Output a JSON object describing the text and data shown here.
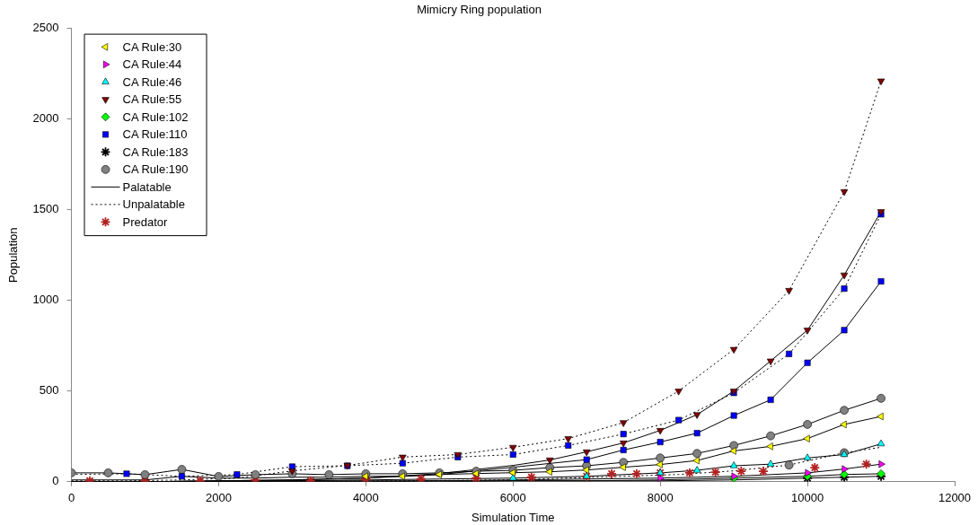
{
  "chart_data": {
    "type": "scatter",
    "title": "Mimicry Ring population",
    "xlabel": "Simulation Time",
    "ylabel": "Population",
    "xlim": [
      0,
      12000
    ],
    "ylim": [
      0,
      2500
    ],
    "xticks": [
      0,
      2000,
      4000,
      6000,
      8000,
      10000,
      12000
    ],
    "yticks": [
      0,
      500,
      1000,
      1500,
      2000,
      2500
    ],
    "grid": false,
    "legend": "top left",
    "series": [
      {
        "name": "CA Rule:30",
        "color": "#ffff00",
        "marker": "triangle-left",
        "x": [
          4000,
          4500,
          5000,
          5500,
          6000,
          6500,
          7000,
          7500,
          8000,
          8500,
          9000,
          9500,
          10000,
          10500,
          11000
        ],
        "values": [
          30,
          30,
          40,
          45,
          50,
          55,
          65,
          80,
          95,
          117,
          170,
          195,
          238,
          316,
          360
        ]
      },
      {
        "name": "CA Rule:44",
        "color": "#ff00ff",
        "marker": "triangle-right",
        "x": [
          8000,
          9000,
          10000,
          10500,
          11000
        ],
        "values": [
          20,
          30,
          49,
          70,
          97
        ]
      },
      {
        "name": "CA Rule:46",
        "color": "#00ffff",
        "marker": "triangle",
        "x": [
          6000,
          7000,
          8000,
          8500,
          9000,
          9500,
          10000,
          10500,
          11000
        ],
        "values": [
          20,
          30,
          49,
          63,
          88,
          97,
          131,
          150,
          209
        ]
      },
      {
        "name": "CA Rule:55",
        "color": "#800000",
        "marker": "triangle-down",
        "x": [
          6500,
          7000,
          7500,
          8000,
          8500,
          9000,
          9500,
          10000,
          10500,
          11000,
          3000,
          3750,
          4500,
          5250,
          6000,
          6750,
          7500,
          8250,
          9000,
          9750,
          10500,
          11000
        ],
        "values": [
          120,
          165,
          214,
          283,
          370,
          500,
          666,
          836,
          1140,
          1490,
          60,
          90,
          136,
          150,
          190,
          238,
          326,
          500,
          730,
          1055,
          1600,
          2210
        ]
      },
      {
        "name": "CA Rule:102",
        "color": "#00ff00",
        "marker": "diamond",
        "x": [
          9000,
          10000,
          10500,
          11000
        ],
        "values": [
          20,
          30,
          40,
          44
        ]
      },
      {
        "name": "CA Rule:110",
        "color": "#0000ff",
        "marker": "square",
        "x": [
          7000,
          7500,
          8000,
          8500,
          9000,
          9500,
          10000,
          10500,
          11000,
          750,
          1500,
          2250,
          3000,
          3750,
          4500,
          5250,
          6000,
          6750,
          7500,
          8250,
          9000,
          9750,
          10500,
          11000
        ],
        "values": [
          122,
          175,
          219,
          268,
          365,
          452,
          656,
          836,
          1105,
          44,
          30,
          40,
          83,
          88,
          102,
          136,
          150,
          200,
          263,
          340,
          490,
          705,
          1065,
          1475
        ]
      },
      {
        "name": "CA Rule:183",
        "color": "#000000",
        "marker": "cross",
        "x": [
          10000,
          10500,
          11000
        ],
        "values": [
          20,
          25,
          30
        ]
      },
      {
        "name": "CA Rule:190",
        "color": "#808080",
        "marker": "circle",
        "x": [
          0,
          500,
          1000,
          1500,
          2000,
          2500,
          3000,
          3500,
          4000,
          4500,
          5000,
          5500,
          6000,
          6500,
          7000,
          7500,
          8000,
          8500,
          9000,
          9500,
          10000,
          10500,
          11000,
          9750,
          10500
        ],
        "values": [
          49,
          49,
          39,
          68,
          29,
          39,
          44,
          39,
          44,
          44,
          49,
          58,
          63,
          78,
          88,
          107,
          131,
          156,
          200,
          253,
          316,
          394,
          460,
          92,
          160
        ]
      },
      {
        "type": "line",
        "name": "Palatable",
        "color": "#000000",
        "line_style": "solid",
        "x": [
          0,
          500,
          1000,
          1500,
          2000,
          2500,
          3000,
          3500,
          4000,
          4500,
          5000,
          5500,
          6000,
          6500,
          7000,
          7500,
          8000,
          8500,
          9000,
          9500,
          10000,
          10500,
          11000
        ],
        "values": [
          10,
          10,
          10,
          30,
          20,
          20,
          25,
          25,
          30,
          30,
          40,
          45,
          50,
          55,
          65,
          80,
          95,
          117,
          170,
          195,
          238,
          316,
          360
        ]
      },
      {
        "type": "line",
        "color": "#000000",
        "line_style": "solid",
        "x": [
          0,
          1000,
          2000,
          3000,
          4000,
          5000,
          6000,
          7000,
          8000,
          9000,
          10000,
          10500,
          11000
        ],
        "values": [
          0,
          0,
          0,
          5,
          5,
          5,
          10,
          15,
          20,
          30,
          49,
          70,
          97
        ]
      },
      {
        "type": "line",
        "color": "#000000",
        "line_style": "solid",
        "x": [
          0,
          1000,
          2000,
          3000,
          4000,
          5000,
          6000,
          7000,
          8000,
          8500,
          9000,
          9500,
          10000,
          10500,
          11000
        ],
        "values": [
          0,
          0,
          5,
          5,
          10,
          15,
          20,
          30,
          49,
          63,
          88,
          97,
          131,
          150,
          209
        ]
      },
      {
        "type": "line",
        "color": "#000000",
        "line_style": "solid",
        "x": [
          0,
          1000,
          2000,
          3000,
          4000,
          5000,
          6000,
          6500,
          7000,
          7500,
          8000,
          8500,
          9000,
          9500,
          10000,
          10500,
          11000
        ],
        "values": [
          0,
          0,
          5,
          10,
          20,
          45,
          90,
          120,
          165,
          214,
          283,
          370,
          500,
          666,
          836,
          1140,
          1490
        ]
      },
      {
        "type": "line",
        "color": "#000000",
        "line_style": "solid",
        "x": [
          0,
          1000,
          2000,
          3000,
          4000,
          5000,
          6000,
          7000,
          8000,
          9000,
          10000,
          10500,
          11000
        ],
        "values": [
          0,
          0,
          0,
          0,
          0,
          5,
          5,
          5,
          10,
          20,
          30,
          40,
          44
        ]
      },
      {
        "type": "line",
        "color": "#000000",
        "line_style": "solid",
        "x": [
          0,
          1000,
          2000,
          3000,
          4000,
          5000,
          6000,
          7000,
          7500,
          8000,
          8500,
          9000,
          9500,
          10000,
          10500,
          11000
        ],
        "values": [
          0,
          0,
          5,
          10,
          20,
          40,
          80,
          122,
          175,
          219,
          268,
          365,
          452,
          656,
          836,
          1105
        ]
      },
      {
        "type": "line",
        "color": "#000000",
        "line_style": "solid",
        "x": [
          0,
          1000,
          2000,
          3000,
          4000,
          5000,
          6000,
          7000,
          8000,
          9000,
          10000,
          10500,
          11000
        ],
        "values": [
          0,
          0,
          0,
          0,
          0,
          0,
          5,
          5,
          5,
          10,
          20,
          25,
          30
        ]
      },
      {
        "type": "line",
        "color": "#000000",
        "line_style": "solid",
        "x": [
          0,
          500,
          1000,
          1500,
          2000,
          2500,
          3000,
          3500,
          4000,
          4500,
          5000,
          5500,
          6000,
          6500,
          7000,
          7500,
          8000,
          8500,
          9000,
          9500,
          10000,
          10500,
          11000
        ],
        "values": [
          49,
          49,
          39,
          68,
          29,
          39,
          44,
          39,
          44,
          44,
          49,
          58,
          63,
          78,
          88,
          107,
          131,
          156,
          200,
          253,
          316,
          394,
          460
        ]
      },
      {
        "type": "line",
        "name": "Unpalatable",
        "color": "#000000",
        "line_style": "dotted",
        "x": [
          0,
          750,
          1500,
          2250,
          3000,
          3750,
          4500,
          5250,
          6000,
          6750,
          7500,
          8250,
          9000,
          9750,
          10500,
          11000
        ],
        "values": [
          5,
          5,
          10,
          20,
          60,
          90,
          136,
          150,
          190,
          238,
          326,
          500,
          730,
          1055,
          1600,
          2210
        ]
      },
      {
        "type": "line",
        "color": "#000000",
        "line_style": "dotted",
        "x": [
          0,
          750,
          1500,
          2250,
          3000,
          3750,
          4500,
          5250,
          6000,
          6750,
          7500,
          8250,
          9000,
          9750,
          10500,
          11000
        ],
        "values": [
          40,
          44,
          30,
          40,
          83,
          88,
          102,
          136,
          150,
          200,
          263,
          340,
          490,
          705,
          1065,
          1475
        ]
      },
      {
        "type": "line",
        "color": "#000000",
        "line_style": "dotted",
        "x": [
          0,
          1500,
          3000,
          4500,
          6000,
          6750,
          7500,
          8250,
          9000,
          9750,
          10500,
          11000
        ],
        "values": [
          0,
          0,
          0,
          5,
          10,
          20,
          30,
          40,
          60,
          92,
          160,
          190
        ]
      },
      {
        "name": "Predator",
        "color": "#b22222",
        "marker": "cross",
        "x": [
          250,
          1000,
          1750,
          2500,
          3250,
          4000,
          4750,
          5500,
          6250,
          7000,
          7340,
          7680,
          8000,
          8400,
          8750,
          9100,
          9400,
          10100,
          10800
        ],
        "values": [
          5,
          5,
          5,
          10,
          5,
          15,
          15,
          20,
          25,
          30,
          44,
          44,
          49,
          49,
          53,
          58,
          58,
          78,
          97
        ]
      }
    ]
  }
}
